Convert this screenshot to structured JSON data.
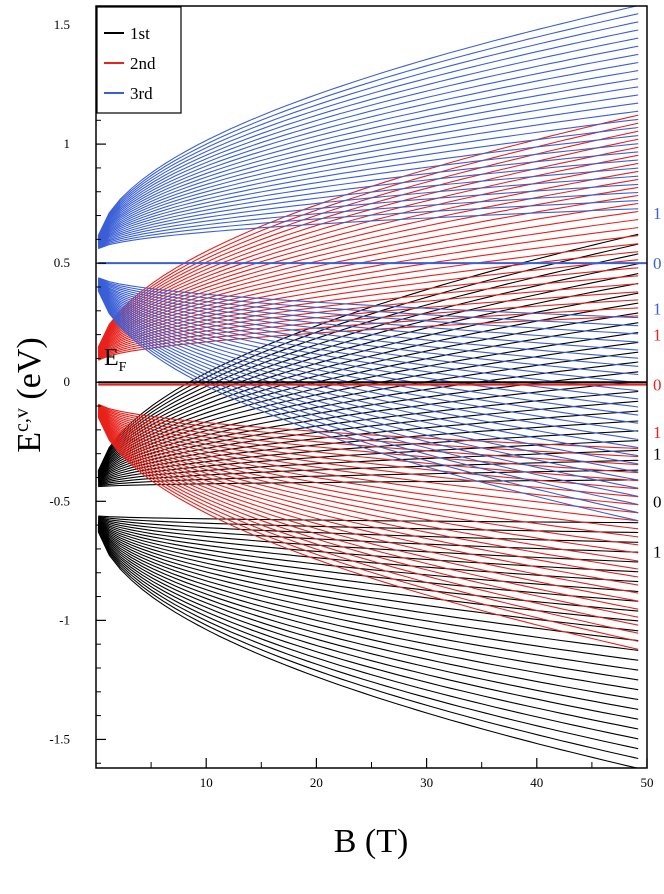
{
  "chart_data": {
    "type": "line",
    "title": "",
    "xlabel": "B (T)",
    "ylabel_main": "E",
    "ylabel_sup": "c,v",
    "ylabel_unit": " (eV)",
    "xlim": [
      0,
      50
    ],
    "ylim": [
      -1.62,
      1.58
    ],
    "x_ticks": [
      10,
      20,
      30,
      40,
      50
    ],
    "x_tick_labels": [
      "10",
      "20",
      "30",
      "40",
      "50"
    ],
    "x_minor_ticks": [
      5,
      15,
      25,
      35,
      45
    ],
    "y_ticks": [
      -1.5,
      -1,
      -0.5,
      0,
      0.5,
      1,
      1.5
    ],
    "y_tick_labels": [
      "-1.5",
      "-1",
      "-0.5",
      "0",
      "0.5",
      "1",
      "1.5"
    ],
    "y_minor_step": 0.1,
    "grid": false,
    "legend_position": "top-left",
    "fermi_label": {
      "main": "E",
      "sub": "F",
      "y": 0.08
    },
    "series": [
      {
        "name": "1st",
        "color": "#000000",
        "center": -0.5,
        "n0_level": 0.0,
        "start_offset": 0.06,
        "spread_low": 0.03,
        "spread_high": 1.07,
        "levels": 26,
        "right_labels": [
          {
            "text": "1",
            "y": -0.3
          },
          {
            "text": "0",
            "y": -0.5
          },
          {
            "text": "1",
            "y": -0.71
          }
        ]
      },
      {
        "name": "2nd",
        "color": "#e8221c",
        "center": 0.0,
        "n0_level": -0.01,
        "start_offset": 0.08,
        "spread_low": 0.2,
        "spread_high": 1.05,
        "levels": 26,
        "right_labels": [
          {
            "text": "1",
            "y": 0.2
          },
          {
            "text": "0",
            "y": -0.01
          },
          {
            "text": "1",
            "y": -0.21
          }
        ]
      },
      {
        "name": "3rd",
        "color": "#3a5fd6",
        "center": 0.5,
        "n0_level": 0.5,
        "start_offset": 0.05,
        "spread_low": 0.18,
        "spread_high": 1.04,
        "levels": 26,
        "right_labels": [
          {
            "text": "1",
            "y": 0.71
          },
          {
            "text": "0",
            "y": 0.5
          },
          {
            "text": "1",
            "y": 0.31
          }
        ]
      }
    ]
  }
}
